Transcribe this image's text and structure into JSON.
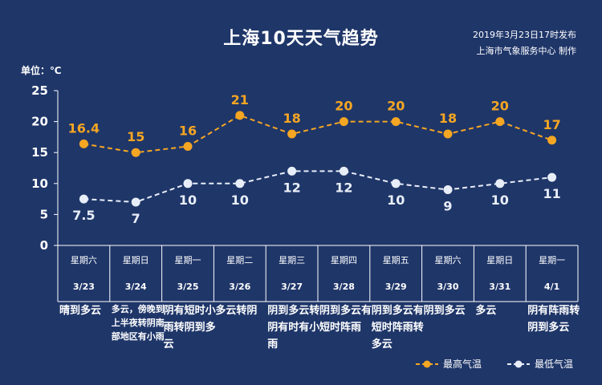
{
  "title": "上海10天天气趋势",
  "issue_time": "2019年3月23日17时发布",
  "producer": "上海市气象服务中心  制作",
  "unit_label": "单位：℃",
  "colors": {
    "background": "#1f3669",
    "high": "#f5a623",
    "low": "#e8eef8"
  },
  "chart_data": {
    "type": "line",
    "title": "上海10天天气趋势",
    "ylabel": "单位：℃",
    "ylim": [
      0,
      25
    ],
    "yticks": [
      0,
      5,
      10,
      15,
      20,
      25
    ],
    "categories": [
      "3/23",
      "3/24",
      "3/25",
      "3/26",
      "3/27",
      "3/28",
      "3/29",
      "3/30",
      "3/31",
      "4/1"
    ],
    "series": [
      {
        "name": "最高气温",
        "values": [
          16.4,
          15,
          16,
          21,
          18,
          20,
          20,
          18,
          20,
          17
        ],
        "labels": [
          "16.4",
          "15",
          "16",
          "21",
          "18",
          "20",
          "20",
          "18",
          "20",
          "17"
        ]
      },
      {
        "name": "最低气温",
        "values": [
          7.5,
          7,
          10,
          10,
          12,
          12,
          10,
          9,
          10,
          11
        ],
        "labels": [
          "7.5",
          "7",
          "10",
          "10",
          "12",
          "12",
          "10",
          "9",
          "10",
          "11"
        ]
      }
    ],
    "legend": "bottom-right"
  },
  "days": [
    {
      "weekday": "星期六",
      "date": "3/23",
      "weather": "晴到多云",
      "small": false
    },
    {
      "weekday": "星期日",
      "date": "3/24",
      "weather": "多云，傍晚到上半夜转阴南部地区有小雨",
      "small": true
    },
    {
      "weekday": "星期一",
      "date": "3/25",
      "weather": "阴有短时小雨转阴到多云",
      "small": false
    },
    {
      "weekday": "星期二",
      "date": "3/26",
      "weather": "多云转阴",
      "small": false
    },
    {
      "weekday": "星期三",
      "date": "3/27",
      "weather": "阴到多云转阴有时有小雨",
      "small": false
    },
    {
      "weekday": "星期四",
      "date": "3/28",
      "weather": "阴到多云有短时阵雨",
      "small": false
    },
    {
      "weekday": "星期五",
      "date": "3/29",
      "weather": "阴到多云有短时阵雨转多云",
      "small": false
    },
    {
      "weekday": "星期六",
      "date": "3/30",
      "weather": "阴到多云",
      "small": false
    },
    {
      "weekday": "星期日",
      "date": "3/31",
      "weather": "多云",
      "small": false
    },
    {
      "weekday": "星期一",
      "date": "4/1",
      "weather": "阴有阵雨转阴到多云",
      "small": false
    }
  ],
  "legend": {
    "high": "最高气温",
    "low": "最低气温"
  }
}
